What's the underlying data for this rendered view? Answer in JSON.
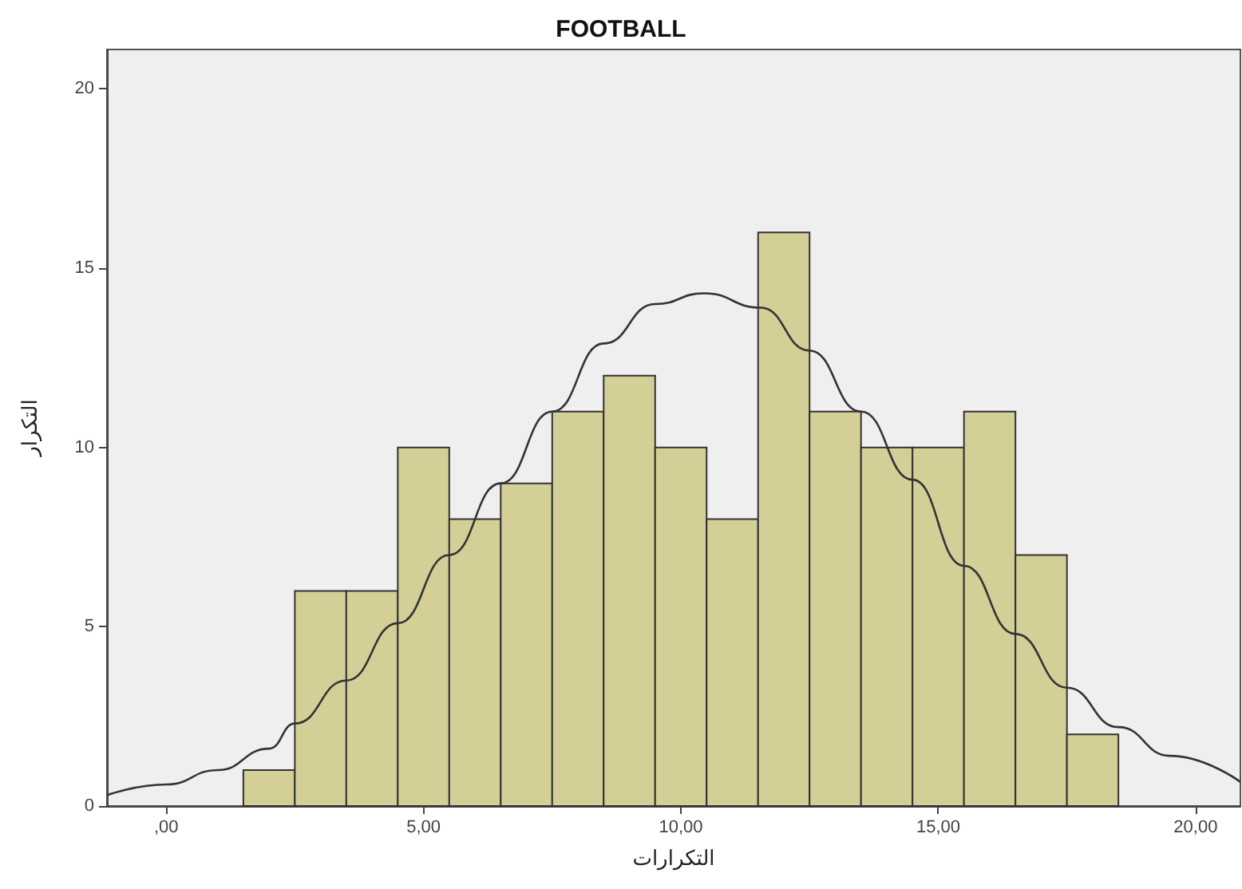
{
  "chart_data": {
    "type": "histogram",
    "title": "FOOTBALL",
    "xlabel": "التكرارات",
    "ylabel": "التكرار",
    "bins": [
      1.5,
      2.5,
      3.5,
      4.5,
      5.5,
      6.5,
      7.5,
      8.5,
      9.5,
      10.5,
      11.5,
      12.5,
      13.5,
      14.5,
      15.5,
      16.5,
      17.5,
      18.5
    ],
    "values": [
      1,
      6,
      6,
      10,
      8,
      9,
      11,
      12,
      10,
      8,
      16,
      11,
      10,
      10,
      11,
      7,
      2
    ],
    "color": "#d3cf97",
    "series": [
      {
        "type": "line",
        "color": "#333333",
        "marker": "none",
        "x": [
          -1.15,
          0,
          1,
          2,
          2.5,
          3.5,
          4.5,
          5.5,
          6.5,
          7.5,
          8.5,
          9.5,
          10.45,
          11.55,
          12.5,
          13.5,
          14.5,
          15.5,
          16.5,
          17.5,
          18.5,
          19.5,
          20.87
        ],
        "values": [
          0.3,
          0.6,
          1.0,
          1.6,
          2.3,
          3.5,
          5.1,
          7.0,
          9.0,
          11.0,
          12.9,
          14.0,
          14.3,
          13.9,
          12.7,
          11.0,
          9.1,
          6.7,
          4.8,
          3.3,
          2.2,
          1.4,
          0.67
        ]
      }
    ],
    "xlim": [
      -1.15,
      20.87
    ],
    "xticks": [
      {
        "value": 0,
        "label": ",00"
      },
      {
        "value": 5,
        "label": "5,00"
      },
      {
        "value": 10,
        "label": "10,00"
      },
      {
        "value": 15,
        "label": "15,00"
      },
      {
        "value": 20,
        "label": "20,00"
      }
    ],
    "ylim": [
      0,
      21.1
    ],
    "yticks": [
      0,
      5,
      10,
      15,
      20
    ],
    "grid": false
  }
}
